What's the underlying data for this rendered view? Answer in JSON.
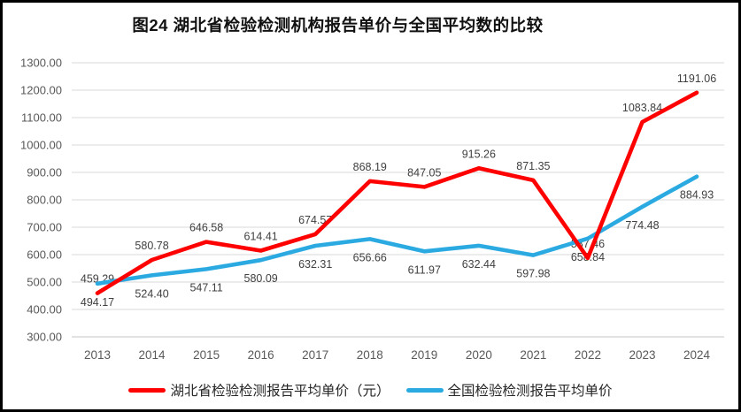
{
  "title": "图24 湖北省检验检测机构报告单价与全国平均数的比较",
  "chart_data": {
    "type": "line",
    "title": "图24 湖北省检验检测机构报告单价与全国平均数的比较",
    "categories": [
      "2013",
      "2014",
      "2015",
      "2016",
      "2017",
      "2018",
      "2019",
      "2020",
      "2021",
      "2022",
      "2023",
      "2024"
    ],
    "series": [
      {
        "name": "湖北省检验检测报告平均单价（元）",
        "color": "#FE0000",
        "label_position": "above",
        "values": [
          459.29,
          580.78,
          646.58,
          614.41,
          674.57,
          868.19,
          847.05,
          915.26,
          871.35,
          587.46,
          1083.84,
          1191.06
        ]
      },
      {
        "name": "全国检验检测报告平均单价",
        "color": "#2BAAE2",
        "label_position": "below",
        "values": [
          494.17,
          524.4,
          547.11,
          580.09,
          632.31,
          656.66,
          611.97,
          632.44,
          597.98,
          658.84,
          774.48,
          884.93
        ]
      }
    ],
    "ylim": [
      300,
      1300
    ],
    "ytick_step": 100,
    "ytick_labels": [
      "1300.00",
      "1200.00",
      "1100.00",
      "1000.00",
      "900.00",
      "800.00",
      "700.00",
      "600.00",
      "500.00",
      "400.00",
      "300.00"
    ],
    "xlabel": "",
    "ylabel": "",
    "grid": "horizontal",
    "legend_position": "bottom",
    "colors": {
      "gridline": "#D9D9D9",
      "axis_line": "#C6C6C6",
      "tick_text": "#595959",
      "data_label_text": "#404040"
    }
  }
}
